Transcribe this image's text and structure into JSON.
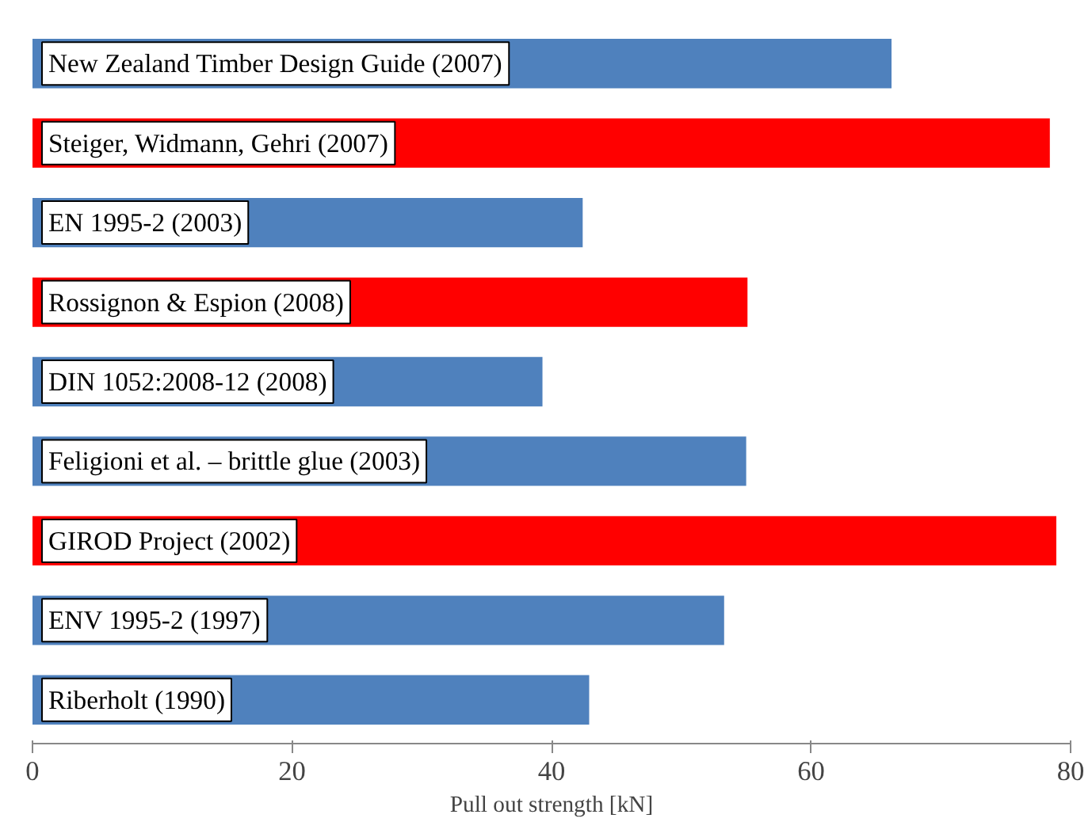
{
  "chart_data": {
    "type": "bar",
    "orientation": "horizontal",
    "xlabel": "Pull out strength [kN]",
    "categories": [
      "New Zealand Timber Design Guide (2007)",
      "Steiger, Widmann, Gehri (2007)",
      "EN 1995-2 (2003)",
      "Rossignon & Espion (2008)",
      "DIN 1052:2008-12 (2008)",
      "Feligioni et al. – brittle glue (2003)",
      "GIROD Project (2002)",
      "ENV 1995-2 (1997)",
      "Riberholt (1990)"
    ],
    "values": [
      66.2,
      78.4,
      42.4,
      55.1,
      39.3,
      55.0,
      78.9,
      53.3,
      42.9
    ],
    "colors": [
      "#4f81bd",
      "#ff0000",
      "#4f81bd",
      "#ff0000",
      "#4f81bd",
      "#4f81bd",
      "#ff0000",
      "#4f81bd",
      "#4f81bd"
    ],
    "xlim": [
      0,
      80
    ],
    "xticks": [
      0,
      20,
      40,
      60,
      80
    ],
    "grid": false
  }
}
